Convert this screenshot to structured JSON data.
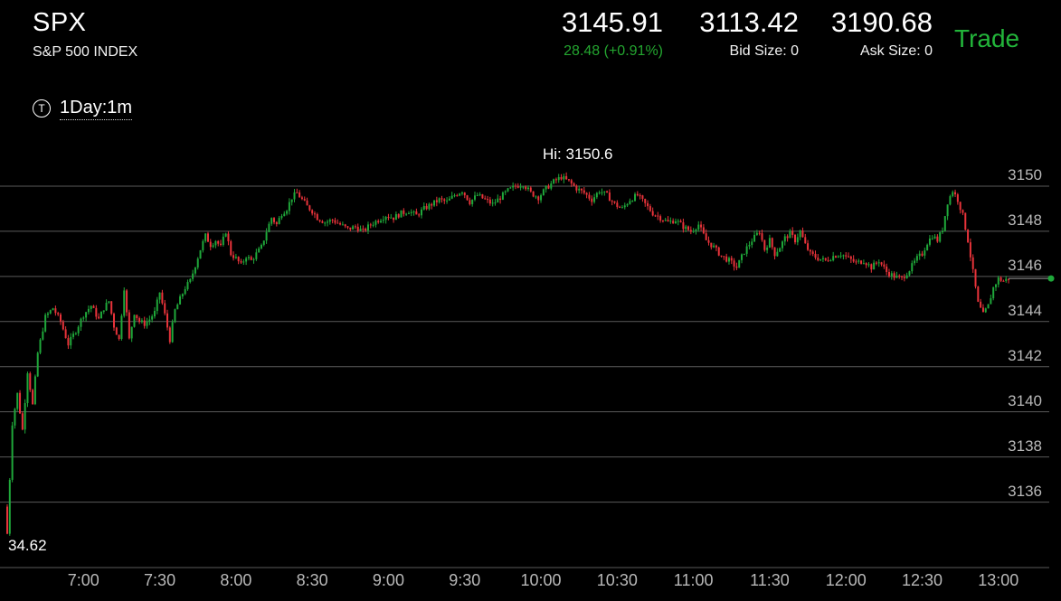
{
  "header": {
    "symbol": "SPX",
    "name": "S&P 500 INDEX",
    "last_price": "3145.91",
    "change": "28.48 (+0.91%)",
    "bid": "3113.42",
    "bid_size": "Bid Size: 0",
    "ask": "3190.68",
    "ask_size": "Ask Size: 0",
    "trade_label": "Trade",
    "change_color": "#23a52f",
    "trade_color": "#22b53a"
  },
  "period": {
    "icon": "t-circle-icon",
    "icon_letter": "T",
    "label": "1Day:1m"
  },
  "chart_data": {
    "type": "candlestick",
    "hi_label": "Hi: 3150.6",
    "lo_label": "34.62",
    "ylim": [
      3133.1,
      3151.6
    ],
    "y_ticks": [
      "3150",
      "3148",
      "3146",
      "3144",
      "3142",
      "3140",
      "3138",
      "3136"
    ],
    "y_tick_values": [
      3150,
      3148,
      3146,
      3144,
      3142,
      3140,
      3138,
      3136
    ],
    "x_ticks": [
      "7:00",
      "7:30",
      "8:00",
      "8:30",
      "9:00",
      "9:30",
      "10:00",
      "10:30",
      "11:00",
      "11:30",
      "12:00",
      "12:30",
      "13:00"
    ],
    "x_tick_minutes": [
      30,
      60,
      90,
      120,
      150,
      180,
      210,
      240,
      270,
      300,
      330,
      360,
      390
    ],
    "x_range_minutes": [
      0,
      410
    ],
    "current_price": 3145.91,
    "up_color": "#1fa83a",
    "down_color": "#e8333a",
    "grid": true,
    "price_path": [
      [
        0,
        3134.6
      ],
      [
        2,
        3139.5
      ],
      [
        4,
        3140.8
      ],
      [
        6,
        3139.2
      ],
      [
        8,
        3141.8
      ],
      [
        10,
        3140.3
      ],
      [
        12,
        3142.6
      ],
      [
        15,
        3144.2
      ],
      [
        18,
        3144.6
      ],
      [
        21,
        3144.0
      ],
      [
        24,
        3143.0
      ],
      [
        27,
        3143.6
      ],
      [
        30,
        3144.3
      ],
      [
        33,
        3144.7
      ],
      [
        36,
        3144.1
      ],
      [
        38,
        3144.6
      ],
      [
        40,
        3144.9
      ],
      [
        42,
        3143.8
      ],
      [
        44,
        3143.2
      ],
      [
        46,
        3145.5
      ],
      [
        48,
        3143.2
      ],
      [
        50,
        3144.4
      ],
      [
        52,
        3144.0
      ],
      [
        54,
        3143.9
      ],
      [
        56,
        3144.1
      ],
      [
        58,
        3144.4
      ],
      [
        60,
        3145.3
      ],
      [
        62,
        3144.3
      ],
      [
        64,
        3143.2
      ],
      [
        66,
        3144.5
      ],
      [
        68,
        3145.0
      ],
      [
        70,
        3145.5
      ],
      [
        72,
        3145.8
      ],
      [
        74,
        3146.5
      ],
      [
        76,
        3147.2
      ],
      [
        78,
        3147.8
      ],
      [
        80,
        3147.4
      ],
      [
        82,
        3147.6
      ],
      [
        84,
        3147.3
      ],
      [
        86,
        3148.0
      ],
      [
        88,
        3147.0
      ],
      [
        90,
        3146.8
      ],
      [
        92,
        3146.5
      ],
      [
        94,
        3146.9
      ],
      [
        96,
        3146.7
      ],
      [
        98,
        3147.0
      ],
      [
        100,
        3147.3
      ],
      [
        102,
        3148.0
      ],
      [
        104,
        3148.6
      ],
      [
        106,
        3148.3
      ],
      [
        108,
        3148.8
      ],
      [
        110,
        3149.0
      ],
      [
        112,
        3149.5
      ],
      [
        114,
        3149.7
      ],
      [
        116,
        3149.4
      ],
      [
        118,
        3149.1
      ],
      [
        120,
        3148.9
      ],
      [
        122,
        3148.6
      ],
      [
        125,
        3148.4
      ],
      [
        128,
        3148.5
      ],
      [
        131,
        3148.3
      ],
      [
        134,
        3148.1
      ],
      [
        137,
        3148.2
      ],
      [
        140,
        3148.0
      ],
      [
        143,
        3148.3
      ],
      [
        146,
        3148.5
      ],
      [
        149,
        3148.7
      ],
      [
        152,
        3148.6
      ],
      [
        155,
        3148.8
      ],
      [
        158,
        3148.9
      ],
      [
        161,
        3148.7
      ],
      [
        164,
        3149.0
      ],
      [
        167,
        3149.2
      ],
      [
        170,
        3149.4
      ],
      [
        173,
        3149.3
      ],
      [
        176,
        3149.6
      ],
      [
        179,
        3149.8
      ],
      [
        182,
        3149.3
      ],
      [
        185,
        3149.6
      ],
      [
        188,
        3149.4
      ],
      [
        191,
        3149.2
      ],
      [
        194,
        3149.5
      ],
      [
        197,
        3149.8
      ],
      [
        200,
        3150.0
      ],
      [
        203,
        3150.1
      ],
      [
        206,
        3149.7
      ],
      [
        209,
        3149.5
      ],
      [
        212,
        3149.9
      ],
      [
        215,
        3150.2
      ],
      [
        218,
        3150.4
      ],
      [
        221,
        3150.2
      ],
      [
        224,
        3149.9
      ],
      [
        227,
        3149.7
      ],
      [
        230,
        3149.4
      ],
      [
        233,
        3149.8
      ],
      [
        236,
        3149.6
      ],
      [
        239,
        3149.2
      ],
      [
        242,
        3149.0
      ],
      [
        245,
        3149.4
      ],
      [
        248,
        3149.6
      ],
      [
        251,
        3149.2
      ],
      [
        254,
        3148.8
      ],
      [
        257,
        3148.6
      ],
      [
        260,
        3148.4
      ],
      [
        263,
        3148.5
      ],
      [
        266,
        3148.2
      ],
      [
        269,
        3148.0
      ],
      [
        272,
        3148.3
      ],
      [
        275,
        3147.6
      ],
      [
        278,
        3147.3
      ],
      [
        281,
        3146.9
      ],
      [
        284,
        3146.7
      ],
      [
        287,
        3146.4
      ],
      [
        290,
        3147.1
      ],
      [
        293,
        3147.6
      ],
      [
        296,
        3148.0
      ],
      [
        298,
        3147.2
      ],
      [
        300,
        3147.6
      ],
      [
        302,
        3147.0
      ],
      [
        304,
        3147.3
      ],
      [
        306,
        3147.7
      ],
      [
        308,
        3147.9
      ],
      [
        310,
        3147.6
      ],
      [
        312,
        3148.0
      ],
      [
        314,
        3147.4
      ],
      [
        316,
        3147.0
      ],
      [
        319,
        3146.8
      ],
      [
        322,
        3146.7
      ],
      [
        325,
        3146.9
      ],
      [
        328,
        3147.0
      ],
      [
        331,
        3146.8
      ],
      [
        334,
        3146.6
      ],
      [
        337,
        3146.7
      ],
      [
        340,
        3146.4
      ],
      [
        343,
        3146.7
      ],
      [
        346,
        3146.2
      ],
      [
        349,
        3146.0
      ],
      [
        352,
        3145.9
      ],
      [
        355,
        3146.3
      ],
      [
        358,
        3146.8
      ],
      [
        360,
        3147.0
      ],
      [
        362,
        3147.5
      ],
      [
        364,
        3147.8
      ],
      [
        366,
        3147.6
      ],
      [
        368,
        3148.1
      ],
      [
        370,
        3149.3
      ],
      [
        372,
        3149.8
      ],
      [
        374,
        3149.4
      ],
      [
        376,
        3148.7
      ],
      [
        378,
        3147.6
      ],
      [
        380,
        3146.2
      ],
      [
        382,
        3144.8
      ],
      [
        384,
        3144.3
      ],
      [
        386,
        3144.7
      ],
      [
        388,
        3145.5
      ],
      [
        390,
        3145.9
      ],
      [
        392,
        3145.8
      ],
      [
        394,
        3145.9
      ]
    ]
  }
}
